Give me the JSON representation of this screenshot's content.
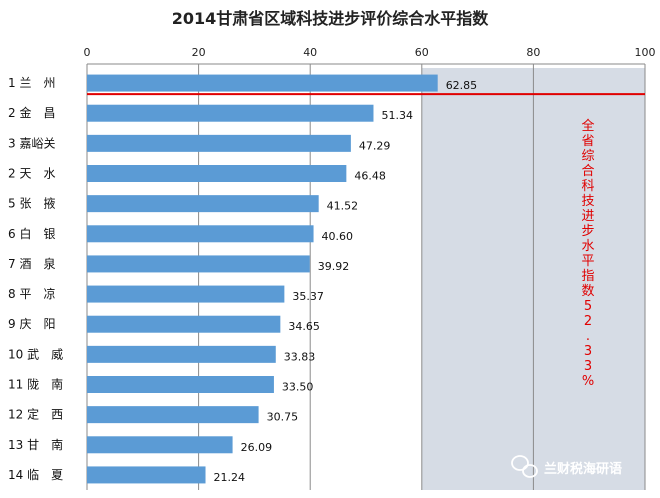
{
  "chart_data": {
    "type": "bar",
    "orientation": "horizontal",
    "title": "2014甘肃省区域科技进步评价综合水平指数",
    "xlim": [
      0,
      100
    ],
    "xticks": [
      0,
      20,
      40,
      60,
      80,
      100
    ],
    "grid": true,
    "categories": [
      "1 兰　州",
      "2 金　昌",
      "3 嘉峪关",
      "2 天　水",
      "5 张　掖",
      "6 白　银",
      "7 酒　泉",
      "8 平　凉",
      "9 庆　阳",
      "10 武　威",
      "11 陇　南",
      "12 定　西",
      "13 甘　南",
      "14 临　夏"
    ],
    "values": [
      62.85,
      51.34,
      47.29,
      46.48,
      41.52,
      40.6,
      39.92,
      35.37,
      34.65,
      33.83,
      33.5,
      30.75,
      26.09,
      21.24
    ],
    "value_labels": [
      "62.85",
      "51.34",
      "47.29",
      "46.48",
      "41.52",
      "40.60",
      "39.92",
      "35.37",
      "34.65",
      "33.83",
      "33.50",
      "30.75",
      "26.09",
      "21.24"
    ],
    "reference_line": {
      "value": 52.33,
      "orientation": "horizontal",
      "color": "#e00000"
    },
    "annotation": "全省综合科技进步水平指数52.33%",
    "colors": {
      "bar": "#5b9bd5",
      "shaded_region": "#d6dce5",
      "reference": "#e00000"
    }
  },
  "watermark": {
    "text": "兰财税海研语"
  }
}
